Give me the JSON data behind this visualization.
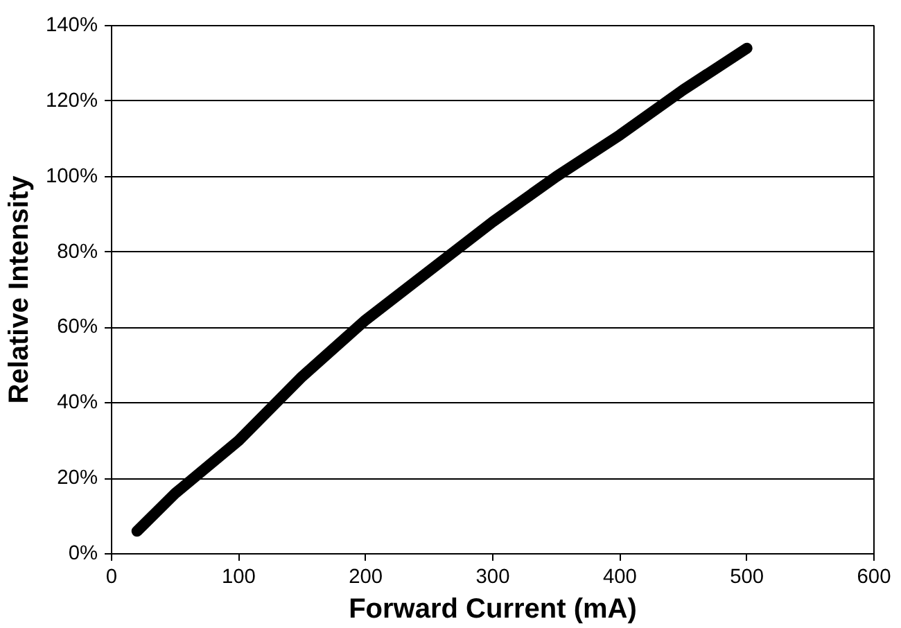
{
  "chart_data": {
    "type": "line",
    "xlabel": "Forward Current (mA)",
    "ylabel": "Relative Intensity",
    "x": [
      20,
      50,
      100,
      150,
      200,
      250,
      300,
      350,
      400,
      450,
      500
    ],
    "series": [
      {
        "color": "#000000",
        "values": [
          6,
          16,
          30,
          47,
          62,
          75,
          88,
          100,
          111,
          123,
          134
        ]
      }
    ],
    "xlim": [
      0,
      600
    ],
    "xticks": [
      0,
      100,
      200,
      300,
      400,
      500,
      600
    ],
    "ylim": [
      0,
      140
    ],
    "yticks": [
      {
        "value": 0,
        "label": "0%"
      },
      {
        "value": 20,
        "label": "20%"
      },
      {
        "value": 40,
        "label": "40%"
      },
      {
        "value": 60,
        "label": "60%"
      },
      {
        "value": 80,
        "label": "80%"
      },
      {
        "value": 100,
        "label": "100%"
      },
      {
        "value": 120,
        "label": "120%"
      },
      {
        "value": 140,
        "label": "140%"
      }
    ],
    "grid": "y",
    "marker": "none",
    "line_style": "solid"
  }
}
